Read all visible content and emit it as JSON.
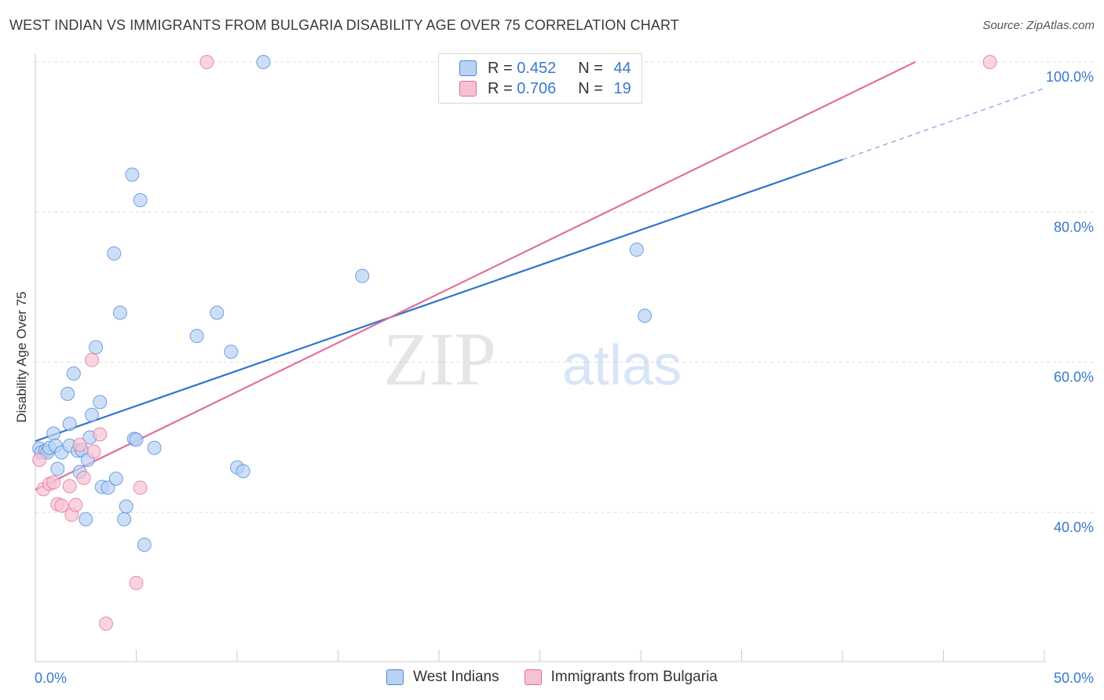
{
  "header": {
    "title": "WEST INDIAN VS IMMIGRANTS FROM BULGARIA DISABILITY AGE OVER 75 CORRELATION CHART",
    "source": "Source: ZipAtlas.com"
  },
  "legend": {
    "row1": {
      "r_label": "R = ",
      "r_value": "0.452",
      "n_label": "N = ",
      "n_value": "44"
    },
    "row2": {
      "r_label": "R = ",
      "r_value": "0.706",
      "n_label": "N = ",
      "n_value": "19"
    }
  },
  "watermark": {
    "zip": "ZIP",
    "atlas": "atlas"
  },
  "colors": {
    "blue": "#4a86d8",
    "blue_fill": "#b8d2f3",
    "pink": "#e26b97",
    "pink_fill": "#f6c2d3",
    "axis_text": "#3a78cc"
  },
  "chart_data": {
    "type": "scatter",
    "title": "WEST INDIAN VS IMMIGRANTS FROM BULGARIA DISABILITY AGE OVER 75 CORRELATION CHART",
    "xlabel": "",
    "ylabel": "Disability Age Over 75",
    "xlim": [
      0,
      50
    ],
    "ylim": [
      22,
      102
    ],
    "x_tick_labels": [
      "0.0%",
      "50.0%"
    ],
    "y_ticks": [
      40,
      60,
      80,
      100
    ],
    "y_tick_labels": [
      "40.0%",
      "60.0%",
      "80.0%",
      "100.0%"
    ],
    "series": [
      {
        "name": "West Indians",
        "R": 0.452,
        "N": 44,
        "trend": {
          "x0": 0,
          "y0": 49.5,
          "x1": 40,
          "y1": 87.0,
          "dash_to_x": 50,
          "dash_to_y": 96.5
        },
        "points": [
          [
            0.2,
            48.5
          ],
          [
            0.3,
            48.0
          ],
          [
            0.5,
            48.2
          ],
          [
            0.6,
            48.0
          ],
          [
            0.7,
            48.6
          ],
          [
            0.9,
            50.5
          ],
          [
            1.0,
            48.9
          ],
          [
            1.1,
            45.8
          ],
          [
            1.3,
            48.0
          ],
          [
            1.7,
            48.9
          ],
          [
            1.6,
            55.8
          ],
          [
            1.7,
            51.8
          ],
          [
            1.9,
            58.5
          ],
          [
            2.1,
            48.2
          ],
          [
            2.2,
            45.4
          ],
          [
            2.3,
            48.3
          ],
          [
            2.5,
            39.1
          ],
          [
            2.6,
            47.0
          ],
          [
            2.7,
            50.0
          ],
          [
            2.8,
            53.0
          ],
          [
            3.0,
            62.0
          ],
          [
            3.2,
            54.7
          ],
          [
            3.3,
            43.4
          ],
          [
            3.6,
            43.3
          ],
          [
            3.9,
            74.5
          ],
          [
            4.0,
            44.5
          ],
          [
            4.2,
            66.6
          ],
          [
            4.4,
            39.1
          ],
          [
            4.5,
            40.8
          ],
          [
            4.8,
            85.0
          ],
          [
            4.9,
            49.8
          ],
          [
            5.0,
            49.7
          ],
          [
            5.2,
            81.6
          ],
          [
            5.4,
            35.7
          ],
          [
            5.9,
            48.6
          ],
          [
            8.0,
            63.5
          ],
          [
            9.0,
            66.6
          ],
          [
            9.7,
            61.4
          ],
          [
            10.0,
            46.0
          ],
          [
            10.3,
            45.5
          ],
          [
            11.3,
            100.0
          ],
          [
            16.2,
            71.5
          ],
          [
            29.8,
            75.0
          ],
          [
            30.2,
            66.2
          ]
        ]
      },
      {
        "name": "Immigrants from Bulgaria",
        "R": 0.706,
        "N": 19,
        "trend": {
          "x0": 0,
          "y0": 43.0,
          "x1": 43.6,
          "y1": 100.0
        },
        "points": [
          [
            0.2,
            47.0
          ],
          [
            0.4,
            43.1
          ],
          [
            0.7,
            43.8
          ],
          [
            0.9,
            44.0
          ],
          [
            1.1,
            41.1
          ],
          [
            1.3,
            40.9
          ],
          [
            1.7,
            43.5
          ],
          [
            1.8,
            39.7
          ],
          [
            2.0,
            41.0
          ],
          [
            2.2,
            49.0
          ],
          [
            2.4,
            44.6
          ],
          [
            2.8,
            60.3
          ],
          [
            2.9,
            48.1
          ],
          [
            3.2,
            50.4
          ],
          [
            3.5,
            25.2
          ],
          [
            5.0,
            30.6
          ],
          [
            5.2,
            43.3
          ],
          [
            8.5,
            100.0
          ],
          [
            47.3,
            100.0
          ]
        ]
      }
    ]
  }
}
